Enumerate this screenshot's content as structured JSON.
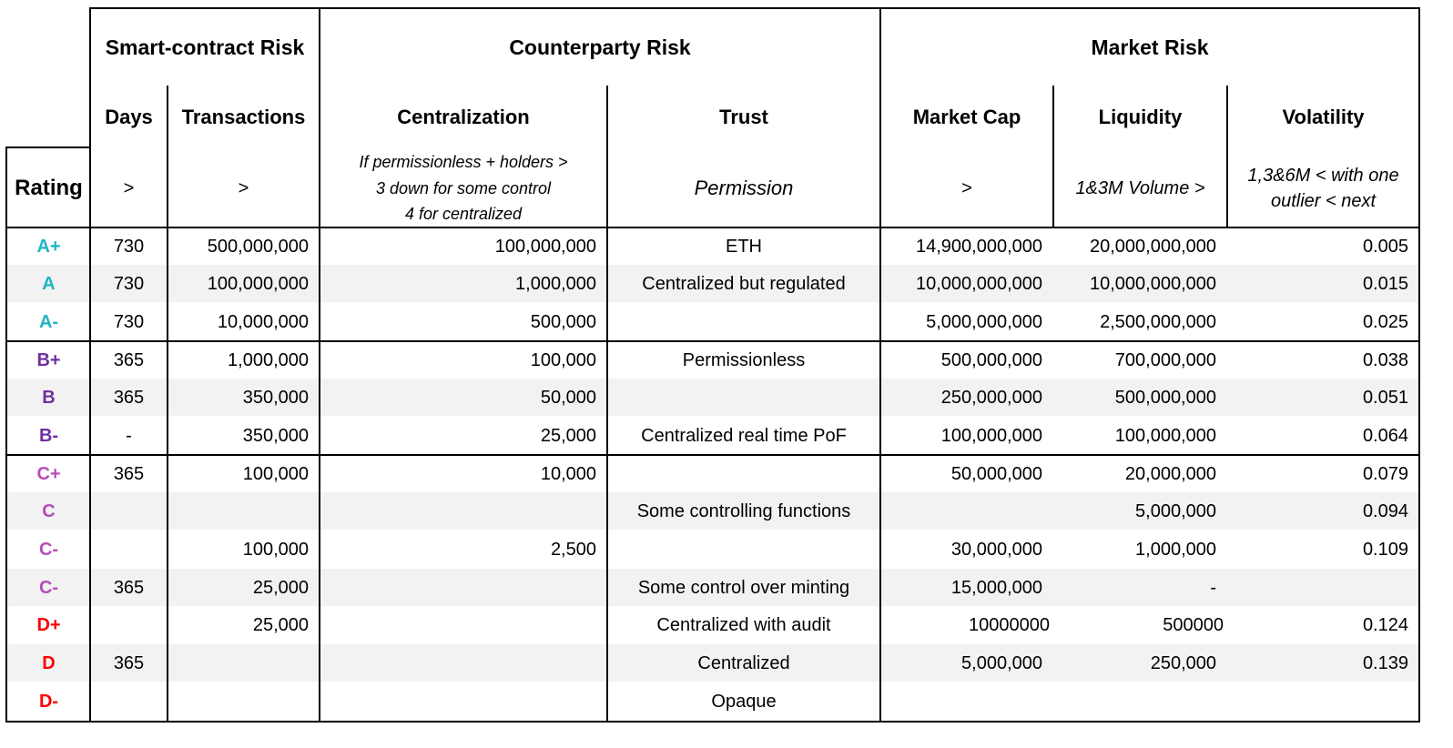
{
  "groups": {
    "smart_contract": "Smart-contract Risk",
    "counterparty": "Counterparty Risk",
    "market": "Market Risk"
  },
  "subheaders": {
    "days": "Days",
    "transactions": "Transactions",
    "centralization": "Centralization",
    "trust": "Trust",
    "market_cap": "Market Cap",
    "liquidity": "Liquidity",
    "volatility": "Volatility"
  },
  "criteria": {
    "rating": "Rating",
    "days": ">",
    "transactions": ">",
    "centralization": "If permissionless + holders >\n3 down for some control\n4 for centralized",
    "trust": "Permission",
    "market_cap": ">",
    "liquidity": "1&3M Volume >",
    "volatility": "1,3&6M < with one\noutlier < next"
  },
  "rating_colors": {
    "A": "#1fb5c2",
    "B": "#7030a0",
    "C": "#b84bb8",
    "D": "#ff0000"
  },
  "rows": [
    {
      "rating": "A+",
      "grade": "A",
      "days": "730",
      "transactions": "500,000,000",
      "centralization": "100,000,000",
      "trust": "ETH",
      "market_cap": "14,900,000,000",
      "liquidity": "20,000,000,000",
      "volatility": "0.005"
    },
    {
      "rating": "A",
      "grade": "A",
      "days": "730",
      "transactions": "100,000,000",
      "centralization": "1,000,000",
      "trust": "Centralized but regulated",
      "market_cap": "10,000,000,000",
      "liquidity": "10,000,000,000",
      "volatility": "0.015"
    },
    {
      "rating": "A-",
      "grade": "A",
      "days": "730",
      "transactions": "10,000,000",
      "centralization": "500,000",
      "trust": "",
      "market_cap": "5,000,000,000",
      "liquidity": "2,500,000,000",
      "volatility": "0.025"
    },
    {
      "rating": "B+",
      "grade": "B",
      "days": "365",
      "transactions": "1,000,000",
      "centralization": "100,000",
      "trust": "Permissionless",
      "market_cap": "500,000,000",
      "liquidity": "700,000,000",
      "volatility": "0.038"
    },
    {
      "rating": "B",
      "grade": "B",
      "days": "365",
      "transactions": "350,000",
      "centralization": "50,000",
      "trust": "",
      "market_cap": "250,000,000",
      "liquidity": "500,000,000",
      "volatility": "0.051"
    },
    {
      "rating": "B-",
      "grade": "B",
      "days": "-",
      "transactions": "350,000",
      "centralization": "25,000",
      "trust": "Centralized  real time PoF",
      "market_cap": "100,000,000",
      "liquidity": "100,000,000",
      "volatility": "0.064"
    },
    {
      "rating": "C+",
      "grade": "C",
      "days": "365",
      "transactions": "100,000",
      "centralization": "10,000",
      "trust": "",
      "market_cap": "50,000,000",
      "liquidity": "20,000,000",
      "volatility": "0.079"
    },
    {
      "rating": "C",
      "grade": "C",
      "days": "",
      "transactions": "",
      "centralization": "",
      "trust": "Some controlling functions",
      "market_cap": "",
      "liquidity": "5,000,000",
      "volatility": "0.094"
    },
    {
      "rating": "C-",
      "grade": "C",
      "days": "",
      "transactions": "100,000",
      "centralization": "2,500",
      "trust": "",
      "market_cap": "30,000,000",
      "liquidity": "1,000,000",
      "volatility": "0.109"
    },
    {
      "rating": "C-",
      "grade": "C",
      "days": "365",
      "transactions": "25,000",
      "centralization": "",
      "trust": "Some control over minting",
      "market_cap": "15,000,000",
      "liquidity": "-",
      "volatility": ""
    },
    {
      "rating": "D+",
      "grade": "D",
      "days": "",
      "transactions": "25,000",
      "centralization": "",
      "trust": "Centralized with audit",
      "market_cap": "10000000",
      "liquidity": "500000",
      "volatility": "0.124"
    },
    {
      "rating": "D",
      "grade": "D",
      "days": "365",
      "transactions": "",
      "centralization": "",
      "trust": "Centralized",
      "market_cap": "5,000,000",
      "liquidity": "250,000",
      "volatility": "0.139"
    },
    {
      "rating": "D-",
      "grade": "D",
      "days": "",
      "transactions": "",
      "centralization": "",
      "trust": "Opaque",
      "market_cap": "",
      "liquidity": "",
      "volatility": ""
    }
  ]
}
